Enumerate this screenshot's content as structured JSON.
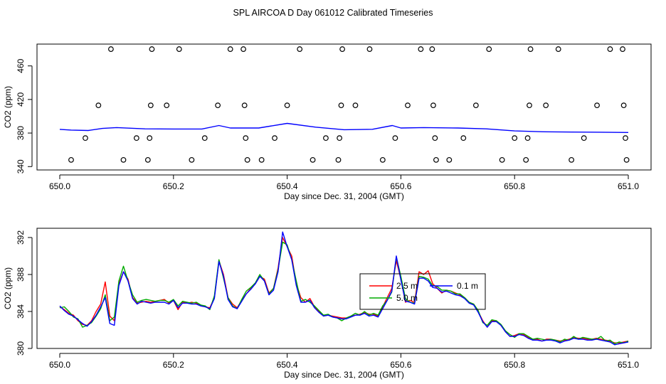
{
  "title": "SPL AIRCOA D  Day 061012  Calibrated Timeseries",
  "chart_data": [
    {
      "type": "line",
      "panel": "top",
      "xlabel": "Day since Dec. 31, 2004 (GMT)",
      "ylabel": "CO2 (ppm)",
      "xlim": [
        650.0,
        651.0
      ],
      "ylim": [
        336,
        486
      ],
      "xticks": [
        650.0,
        650.2,
        650.4,
        650.6,
        650.8,
        651.0
      ],
      "xtick_labels": [
        "650.0",
        "650.2",
        "650.4",
        "650.6",
        "650.8",
        "651.0"
      ],
      "yticks": [
        340,
        380,
        420,
        460
      ],
      "ytick_labels": [
        "340",
        "380",
        "420",
        "460"
      ],
      "line_series": [
        {
          "color": "#0000ff",
          "x": [
            650.0,
            650.02,
            650.05,
            650.075,
            650.1,
            650.15,
            650.2,
            650.25,
            650.28,
            650.3,
            650.35,
            650.4,
            650.45,
            650.5,
            650.55,
            650.585,
            650.6,
            650.64,
            650.7,
            650.75,
            650.8,
            650.85,
            650.9,
            650.95,
            651.0
          ],
          "y": [
            384.4,
            383.5,
            383.0,
            385.5,
            386.5,
            385.0,
            384.8,
            384.8,
            389.0,
            386.0,
            386.0,
            391.5,
            387.0,
            384.0,
            384.5,
            389.0,
            386.0,
            386.5,
            386.0,
            385.0,
            382.5,
            381.5,
            381.2,
            381.0,
            380.7
          ]
        }
      ],
      "points": {
        "x": [
          650.02,
          650.045,
          650.068,
          650.09,
          650.112,
          650.135,
          650.155,
          650.158,
          650.16,
          650.162,
          650.188,
          650.21,
          650.232,
          650.255,
          650.278,
          650.3,
          650.323,
          650.325,
          650.327,
          650.33,
          650.355,
          650.378,
          650.4,
          650.422,
          650.445,
          650.468,
          650.49,
          650.492,
          650.495,
          650.497,
          650.52,
          650.545,
          650.568,
          650.59,
          650.612,
          650.635,
          650.655,
          650.657,
          650.66,
          650.662,
          650.685,
          650.71,
          650.732,
          650.755,
          650.778,
          650.8,
          650.82,
          650.823,
          650.826,
          650.828,
          650.855,
          650.877,
          650.9,
          650.922,
          650.945,
          650.968,
          650.99,
          650.992,
          650.995,
          650.997
        ],
        "y": [
          348,
          374,
          413,
          480,
          348,
          374,
          348,
          374,
          413,
          480,
          413,
          480,
          348,
          374,
          413,
          480,
          480,
          413,
          374,
          348,
          348,
          374,
          413,
          480,
          348,
          374,
          348,
          374,
          413,
          480,
          413,
          480,
          348,
          374,
          413,
          480,
          480,
          413,
          374,
          348,
          348,
          374,
          413,
          480,
          348,
          374,
          348,
          374,
          413,
          480,
          413,
          480,
          348,
          374,
          413,
          480,
          480,
          413,
          374,
          348
        ]
      }
    },
    {
      "type": "line",
      "panel": "bottom",
      "xlabel": "Day since Dec. 31, 2004 (GMT)",
      "ylabel": "CO2 (ppm)",
      "xlim": [
        650.0,
        651.0
      ],
      "ylim": [
        380,
        393
      ],
      "xticks": [
        650.0,
        650.2,
        650.4,
        650.6,
        650.8,
        651.0
      ],
      "xtick_labels": [
        "650.0",
        "650.2",
        "650.4",
        "650.6",
        "650.8",
        "651.0"
      ],
      "yticks": [
        380,
        384,
        388,
        392
      ],
      "ytick_labels": [
        "380",
        "384",
        "388",
        "392"
      ],
      "x": [
        650.0,
        650.008,
        650.016,
        650.024,
        650.032,
        650.04,
        650.048,
        650.056,
        650.064,
        650.072,
        650.08,
        650.088,
        650.096,
        650.104,
        650.112,
        650.12,
        650.128,
        650.136,
        650.144,
        650.152,
        650.16,
        650.168,
        650.176,
        650.184,
        650.192,
        650.2,
        650.208,
        650.216,
        650.224,
        650.232,
        650.24,
        650.248,
        650.256,
        650.264,
        650.272,
        650.28,
        650.288,
        650.296,
        650.304,
        650.312,
        650.32,
        650.328,
        650.336,
        650.344,
        650.352,
        650.36,
        650.368,
        650.376,
        650.384,
        650.392,
        650.4,
        650.408,
        650.416,
        650.424,
        650.432,
        650.44,
        650.448,
        650.456,
        650.464,
        650.472,
        650.48,
        650.488,
        650.496,
        650.504,
        650.512,
        650.52,
        650.528,
        650.536,
        650.544,
        650.552,
        650.56,
        650.568,
        650.576,
        650.584,
        650.592,
        650.6,
        650.608,
        650.616,
        650.624,
        650.632,
        650.64,
        650.648,
        650.656,
        650.664,
        650.672,
        650.68,
        650.688,
        650.696,
        650.704,
        650.712,
        650.72,
        650.728,
        650.736,
        650.744,
        650.752,
        650.76,
        650.768,
        650.776,
        650.784,
        650.792,
        650.8,
        650.808,
        650.816,
        650.824,
        650.832,
        650.84,
        650.848,
        650.856,
        650.864,
        650.872,
        650.88,
        650.888,
        650.896,
        650.904,
        650.912,
        650.92,
        650.928,
        650.936,
        650.944,
        650.952,
        650.96,
        650.968,
        650.976,
        650.984,
        650.992,
        651.0
      ],
      "series": [
        {
          "name": "2.5 m",
          "color": "#ff0000",
          "values": [
            384.5,
            384.2,
            383.8,
            383.6,
            383.0,
            382.6,
            382.5,
            383.0,
            384.0,
            384.8,
            387.2,
            383.5,
            383.0,
            387.0,
            388.3,
            387.5,
            385.5,
            384.9,
            385.0,
            385.1,
            385.0,
            385.1,
            385.2,
            385.3,
            384.9,
            385.2,
            384.2,
            385.0,
            384.9,
            385.0,
            384.9,
            384.6,
            384.5,
            384.4,
            385.5,
            389.5,
            388.0,
            385.5,
            384.8,
            384.4,
            385.2,
            385.9,
            386.5,
            387.0,
            387.8,
            387.5,
            386.0,
            386.5,
            388.7,
            392.0,
            391.0,
            390.0,
            387.0,
            385.5,
            385.0,
            385.4,
            384.5,
            384.0,
            383.5,
            383.6,
            383.5,
            383.4,
            383.3,
            383.3,
            383.5,
            383.6,
            383.7,
            383.9,
            383.7,
            383.7,
            383.5,
            384.5,
            385.5,
            386.5,
            389.5,
            387.5,
            385.0,
            385.2,
            385.0,
            388.3,
            388.0,
            388.4,
            387.0,
            386.5,
            386.0,
            386.3,
            386.2,
            386.0,
            385.8,
            385.5,
            385.0,
            384.8,
            384.0,
            383.0,
            382.3,
            383.0,
            383.0,
            382.5,
            381.8,
            381.3,
            381.4,
            381.6,
            381.5,
            381.2,
            381.0,
            381.0,
            380.8,
            381.0,
            381.0,
            380.9,
            380.8,
            380.9,
            381.0,
            381.2,
            381.1,
            381.1,
            381.0,
            381.0,
            381.1,
            381.0,
            380.9,
            380.8,
            380.6,
            380.6,
            380.7,
            380.8
          ]
        },
        {
          "name": "5.0 m",
          "color": "#00aa00",
          "values": [
            384.4,
            384.5,
            384.0,
            383.4,
            383.2,
            382.3,
            382.5,
            382.8,
            383.5,
            384.3,
            385.8,
            383.0,
            383.4,
            387.3,
            388.9,
            387.3,
            385.8,
            385.0,
            385.2,
            385.3,
            385.2,
            385.1,
            385.2,
            385.2,
            385.0,
            385.3,
            384.6,
            385.1,
            385.0,
            384.9,
            385.0,
            384.7,
            384.6,
            384.2,
            385.7,
            389.6,
            387.6,
            385.5,
            384.6,
            384.3,
            385.3,
            386.2,
            386.6,
            387.1,
            388.0,
            387.3,
            385.9,
            386.5,
            388.5,
            391.5,
            391.2,
            389.6,
            387.3,
            385.1,
            385.3,
            385.0,
            384.6,
            384.1,
            383.6,
            383.7,
            383.4,
            383.3,
            383.0,
            383.3,
            383.5,
            383.8,
            383.6,
            384.0,
            383.6,
            383.8,
            383.6,
            384.6,
            385.2,
            386.1,
            389.9,
            387.8,
            385.4,
            385.0,
            384.9,
            387.8,
            387.7,
            387.5,
            386.8,
            386.7,
            386.3,
            386.3,
            386.2,
            385.9,
            385.9,
            385.5,
            385.0,
            384.8,
            384.1,
            382.8,
            382.5,
            383.1,
            383.0,
            382.6,
            381.9,
            381.5,
            381.2,
            381.6,
            381.6,
            381.3,
            381.0,
            381.1,
            381.0,
            380.9,
            381.0,
            380.9,
            380.7,
            381.0,
            380.9,
            381.3,
            381.0,
            381.2,
            381.1,
            381.0,
            381.0,
            381.3,
            380.8,
            380.9,
            380.5,
            380.7,
            380.6,
            380.8
          ]
        },
        {
          "name": "0.1 m",
          "color": "#0000ff",
          "values": [
            384.6,
            384.1,
            383.7,
            383.5,
            383.1,
            382.7,
            382.4,
            382.9,
            383.6,
            384.5,
            385.5,
            382.7,
            382.5,
            386.8,
            388.3,
            387.3,
            385.4,
            384.8,
            385.1,
            385.0,
            384.9,
            385.0,
            385.0,
            385.0,
            384.8,
            385.2,
            384.4,
            384.9,
            384.9,
            384.8,
            384.8,
            384.6,
            384.5,
            384.3,
            385.4,
            389.4,
            387.8,
            385.3,
            384.5,
            384.3,
            385.1,
            385.9,
            386.4,
            387.0,
            387.8,
            387.3,
            385.8,
            386.3,
            388.3,
            392.6,
            391.0,
            389.6,
            386.8,
            385.0,
            385.0,
            385.2,
            384.4,
            383.9,
            383.5,
            383.6,
            383.4,
            383.3,
            383.2,
            383.2,
            383.4,
            383.6,
            383.6,
            383.8,
            383.5,
            383.6,
            383.4,
            384.3,
            385.2,
            386.2,
            390.0,
            387.4,
            385.1,
            385.0,
            384.8,
            387.6,
            387.6,
            387.3,
            386.6,
            386.5,
            386.1,
            386.2,
            386.0,
            385.8,
            385.7,
            385.4,
            384.9,
            384.7,
            383.9,
            382.9,
            382.3,
            382.9,
            382.9,
            382.5,
            381.8,
            381.3,
            381.3,
            381.5,
            381.4,
            381.1,
            380.9,
            380.9,
            380.8,
            380.9,
            380.9,
            380.8,
            380.6,
            380.8,
            380.9,
            381.1,
            381.0,
            381.0,
            380.9,
            380.9,
            381.0,
            380.9,
            380.8,
            380.7,
            380.4,
            380.5,
            380.6,
            380.7
          ]
        }
      ],
      "legend": [
        "2.5 m",
        "5.0 m",
        "0.1 m"
      ]
    }
  ]
}
